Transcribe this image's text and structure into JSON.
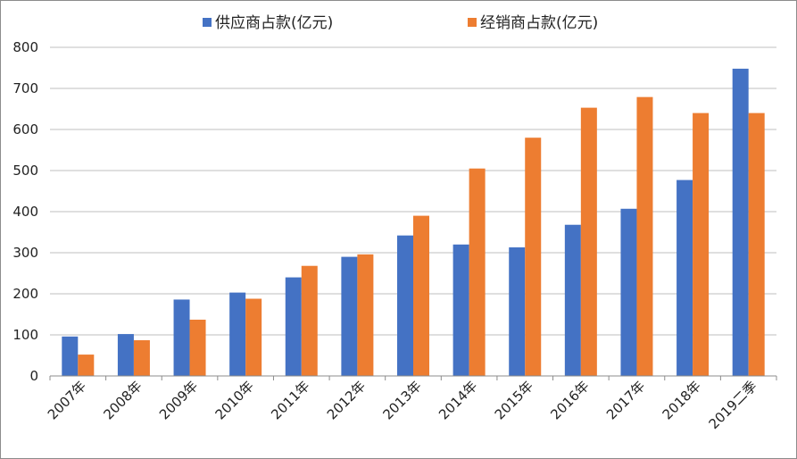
{
  "chart_data": {
    "type": "bar",
    "categories": [
      "2007年",
      "2008年",
      "2009年",
      "2010年",
      "2011年",
      "2012年",
      "2013年",
      "2014年",
      "2015年",
      "2016年",
      "2017年",
      "2018年",
      "2019二季"
    ],
    "series": [
      {
        "name": "供应商占款(亿元)",
        "color": "#4472c4",
        "values": [
          96,
          102,
          186,
          203,
          240,
          290,
          342,
          320,
          313,
          368,
          407,
          477,
          748
        ]
      },
      {
        "name": "经销商占款(亿元)",
        "color": "#ed7d31",
        "values": [
          52,
          87,
          137,
          188,
          268,
          296,
          390,
          505,
          580,
          653,
          679,
          640,
          640
        ]
      }
    ],
    "ylim": [
      0,
      800
    ],
    "yticks": [
      "0",
      "100",
      "200",
      "300",
      "400",
      "500",
      "600",
      "700",
      "800"
    ],
    "grid": true,
    "legend_position": "top"
  }
}
